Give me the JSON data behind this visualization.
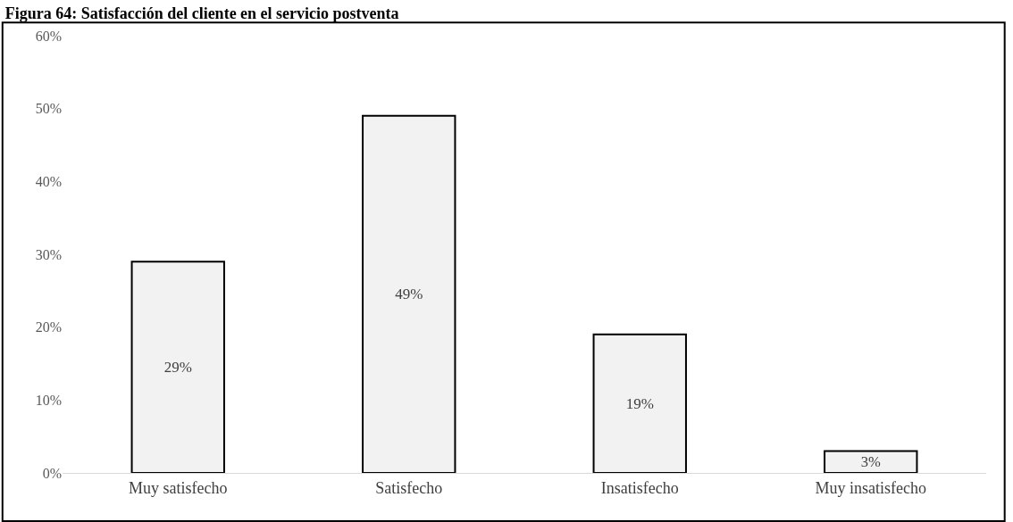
{
  "chart_data": {
    "type": "bar",
    "title": "Figura 64: Satisfacción del cliente en el servicio postventa",
    "categories": [
      "Muy satisfecho",
      "Satisfecho",
      "Insatisfecho",
      "Muy insatisfecho"
    ],
    "values": [
      29,
      49,
      19,
      3
    ],
    "color": "#f2f2f2",
    "value_labels": [
      "29%",
      "49%",
      "19%",
      "3%"
    ],
    "ylim": [
      0,
      60
    ],
    "yticks": [
      {
        "value": 0,
        "label": "0%"
      },
      {
        "value": 10,
        "label": "10%"
      },
      {
        "value": 20,
        "label": "20%"
      },
      {
        "value": 30,
        "label": "30%"
      },
      {
        "value": 40,
        "label": "40%"
      },
      {
        "value": 50,
        "label": "50%"
      },
      {
        "value": 60,
        "label": "60%"
      }
    ],
    "grid": false
  }
}
